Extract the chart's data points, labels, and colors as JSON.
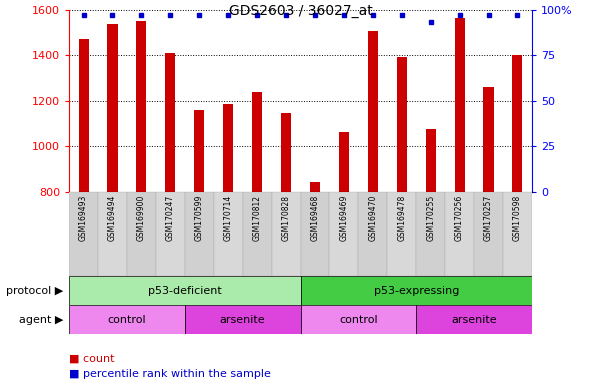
{
  "title": "GDS2603 / 36027_at",
  "samples": [
    "GSM169493",
    "GSM169494",
    "GSM169900",
    "GSM170247",
    "GSM170599",
    "GSM170714",
    "GSM170812",
    "GSM170828",
    "GSM169468",
    "GSM169469",
    "GSM169470",
    "GSM169478",
    "GSM170255",
    "GSM170256",
    "GSM170257",
    "GSM170598"
  ],
  "counts": [
    1470,
    1535,
    1550,
    1410,
    1160,
    1185,
    1240,
    1145,
    845,
    1065,
    1505,
    1390,
    1075,
    1565,
    1260,
    1400
  ],
  "percentile_ranks": [
    97,
    97,
    97,
    97,
    97,
    97,
    97,
    97,
    97,
    97,
    97,
    97,
    93,
    97,
    97,
    97
  ],
  "ylim_left": [
    800,
    1600
  ],
  "ylim_right": [
    0,
    100
  ],
  "yticks_left": [
    800,
    1000,
    1200,
    1400,
    1600
  ],
  "yticks_right": [
    0,
    25,
    50,
    75,
    100
  ],
  "bar_color": "#cc0000",
  "dot_color": "#0000cc",
  "background_color": "#ffffff",
  "plot_bg_color": "#ffffff",
  "xtick_bg_color": "#d8d8d8",
  "protocol_light_color": "#aaeaaa",
  "protocol_dark_color": "#44cc44",
  "agent_light_color": "#ee88ee",
  "agent_dark_color": "#dd44dd",
  "protocol_groups": [
    {
      "label": "p53-deficient",
      "start": 0,
      "end": 7,
      "dark": false
    },
    {
      "label": "p53-expressing",
      "start": 8,
      "end": 15,
      "dark": true
    }
  ],
  "agent_groups": [
    {
      "label": "control",
      "start": 0,
      "end": 3,
      "dark": false
    },
    {
      "label": "arsenite",
      "start": 4,
      "end": 7,
      "dark": true
    },
    {
      "label": "control",
      "start": 8,
      "end": 11,
      "dark": false
    },
    {
      "label": "arsenite",
      "start": 12,
      "end": 15,
      "dark": true
    }
  ]
}
